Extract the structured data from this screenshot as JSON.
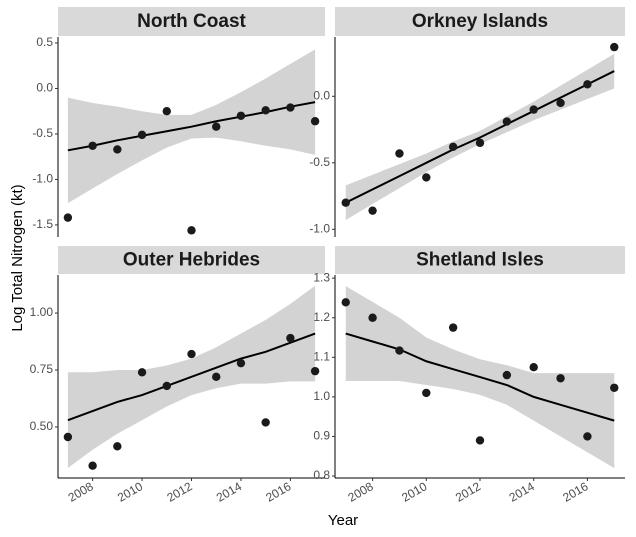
{
  "y_label": "Log Total Nitrogen (kt)",
  "x_label": "Year",
  "chart_data": [
    {
      "type": "scatter",
      "title": "North Coast",
      "x": [
        2007,
        2008,
        2009,
        2010,
        2011,
        2012,
        2013,
        2014,
        2015,
        2016,
        2017
      ],
      "values": [
        -1.42,
        -0.63,
        -0.67,
        -0.51,
        -0.25,
        -1.56,
        -0.42,
        -0.3,
        -0.24,
        -0.21,
        -0.36
      ],
      "fit": [
        -0.68,
        -0.63,
        -0.57,
        -0.52,
        -0.47,
        -0.42,
        -0.36,
        -0.31,
        -0.26,
        -0.2,
        -0.15
      ],
      "ci_upper": [
        -0.1,
        -0.16,
        -0.2,
        -0.25,
        -0.29,
        -0.29,
        -0.18,
        -0.04,
        0.11,
        0.27,
        0.43
      ],
      "ci_lower": [
        -1.26,
        -1.1,
        -0.94,
        -0.79,
        -0.65,
        -0.55,
        -0.54,
        -0.58,
        -0.63,
        -0.67,
        -0.73
      ],
      "color": "#1a1a1a",
      "band_color": "#d3d3d3",
      "xlim": [
        2006.6,
        2017.4
      ],
      "ylim": [
        -1.633,
        0.566
      ],
      "yticks": [
        0.5,
        {
          "value": 0,
          "label": "0.0"
        },
        -0.5,
        {
          "value": -1,
          "label": "-1.0"
        },
        -1.5
      ]
    },
    {
      "type": "scatter",
      "title": "Orkney Islands",
      "x": [
        2007,
        2008,
        2009,
        2010,
        2011,
        2012,
        2013,
        2014,
        2015,
        2016,
        2017
      ],
      "values": [
        -0.8,
        -0.86,
        -0.43,
        -0.61,
        -0.38,
        -0.35,
        -0.19,
        -0.1,
        -0.05,
        0.09,
        0.37
      ],
      "fit": [
        -0.8,
        -0.7,
        -0.6,
        -0.5,
        -0.4,
        -0.31,
        -0.21,
        -0.11,
        -0.01,
        0.09,
        0.19
      ],
      "ci_upper": [
        -0.67,
        -0.59,
        -0.51,
        -0.43,
        -0.34,
        -0.26,
        -0.15,
        -0.04,
        0.08,
        0.2,
        0.32
      ],
      "ci_lower": [
        -0.93,
        -0.81,
        -0.69,
        -0.57,
        -0.46,
        -0.36,
        -0.27,
        -0.18,
        -0.1,
        -0.02,
        0.06
      ],
      "color": "#1a1a1a",
      "band_color": "#d3d3d3",
      "xlim": [
        2006.6,
        2017.4
      ],
      "ylim": [
        -1.058,
        0.446
      ],
      "yticks": [
        {
          "value": 0,
          "label": "0.0"
        },
        -0.5,
        {
          "value": -1,
          "label": "-1.0"
        }
      ]
    },
    {
      "type": "scatter",
      "title": "Outer Hebrides",
      "x": [
        2007,
        2008,
        2009,
        2010,
        2011,
        2012,
        2013,
        2014,
        2015,
        2016,
        2017
      ],
      "values": [
        0.456,
        0.33,
        0.415,
        0.74,
        0.68,
        0.82,
        0.72,
        0.78,
        0.52,
        0.89,
        0.745
      ],
      "fit": [
        0.53,
        0.57,
        0.61,
        0.64,
        0.68,
        0.72,
        0.76,
        0.8,
        0.83,
        0.87,
        0.91
      ],
      "ci_upper": [
        0.74,
        0.74,
        0.75,
        0.75,
        0.77,
        0.8,
        0.85,
        0.91,
        0.97,
        1.04,
        1.12
      ],
      "ci_lower": [
        0.32,
        0.4,
        0.47,
        0.53,
        0.59,
        0.64,
        0.67,
        0.69,
        0.69,
        0.7,
        0.7
      ],
      "color": "#1a1a1a",
      "band_color": "#d3d3d3",
      "xlim": [
        2006.6,
        2017.4
      ],
      "ylim": [
        0.276,
        1.167
      ],
      "xticks": [
        2008,
        2010,
        2012,
        2014,
        2016
      ],
      "yticks": [
        {
          "value": 1,
          "label": "1.00"
        },
        0.75,
        {
          "value": 0.5,
          "label": "0.50"
        }
      ]
    },
    {
      "type": "scatter",
      "title": "Shetland Isles",
      "x": [
        2007,
        2008,
        2009,
        2010,
        2011,
        2012,
        2013,
        2014,
        2015,
        2016,
        2017
      ],
      "values": [
        1.239,
        1.2,
        1.117,
        1.01,
        1.175,
        0.89,
        1.055,
        1.075,
        1.047,
        0.9,
        1.023
      ],
      "fit": [
        1.16,
        1.14,
        1.12,
        1.09,
        1.07,
        1.05,
        1.03,
        1.0,
        0.98,
        0.96,
        0.94
      ],
      "ci_upper": [
        1.28,
        1.24,
        1.2,
        1.15,
        1.12,
        1.095,
        1.08,
        1.06,
        1.06,
        1.06,
        1.06
      ],
      "ci_lower": [
        1.04,
        1.04,
        1.04,
        1.03,
        1.02,
        1.005,
        0.98,
        0.94,
        0.9,
        0.86,
        0.82
      ],
      "color": "#1a1a1a",
      "band_color": "#d3d3d3",
      "xlim": [
        2006.6,
        2017.4
      ],
      "ylim": [
        0.795,
        1.308
      ],
      "xticks": [
        2008,
        2010,
        2012,
        2014,
        2016
      ],
      "yticks": [
        1.3,
        1.2,
        1.1,
        {
          "value": 1,
          "label": "1.0"
        },
        0.9,
        0.8
      ]
    }
  ]
}
